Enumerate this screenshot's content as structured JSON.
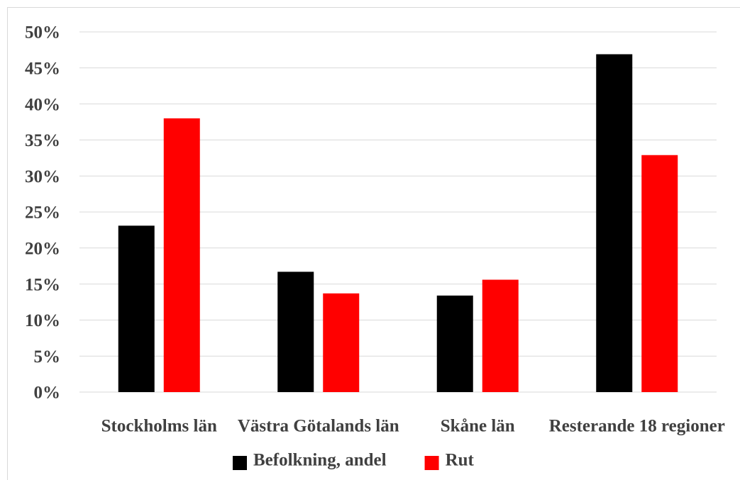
{
  "chart_data": {
    "type": "bar",
    "categories": [
      "Stockholms län",
      "Västra Götalands län",
      "Skåne län",
      "Resterande 18 regioner"
    ],
    "series": [
      {
        "name": "Befolkning, andel",
        "color": "#000000",
        "values": [
          23.1,
          16.7,
          13.4,
          46.9
        ]
      },
      {
        "name": "Rut",
        "color": "#ff0000",
        "values": [
          38.0,
          13.7,
          15.6,
          32.9
        ]
      }
    ],
    "ylim": [
      0,
      50
    ],
    "yticks": [
      {
        "value": 0,
        "label": "0%"
      },
      {
        "value": 5,
        "label": "5%"
      },
      {
        "value": 10,
        "label": "10%"
      },
      {
        "value": 15,
        "label": "15%"
      },
      {
        "value": 20,
        "label": "20%"
      },
      {
        "value": 25,
        "label": "25%"
      },
      {
        "value": 30,
        "label": "30%"
      },
      {
        "value": 35,
        "label": "35%"
      },
      {
        "value": 40,
        "label": "40%"
      },
      {
        "value": 45,
        "label": "45%"
      },
      {
        "value": 50,
        "label": "50%"
      }
    ],
    "grid": true,
    "legend": "bottom"
  }
}
